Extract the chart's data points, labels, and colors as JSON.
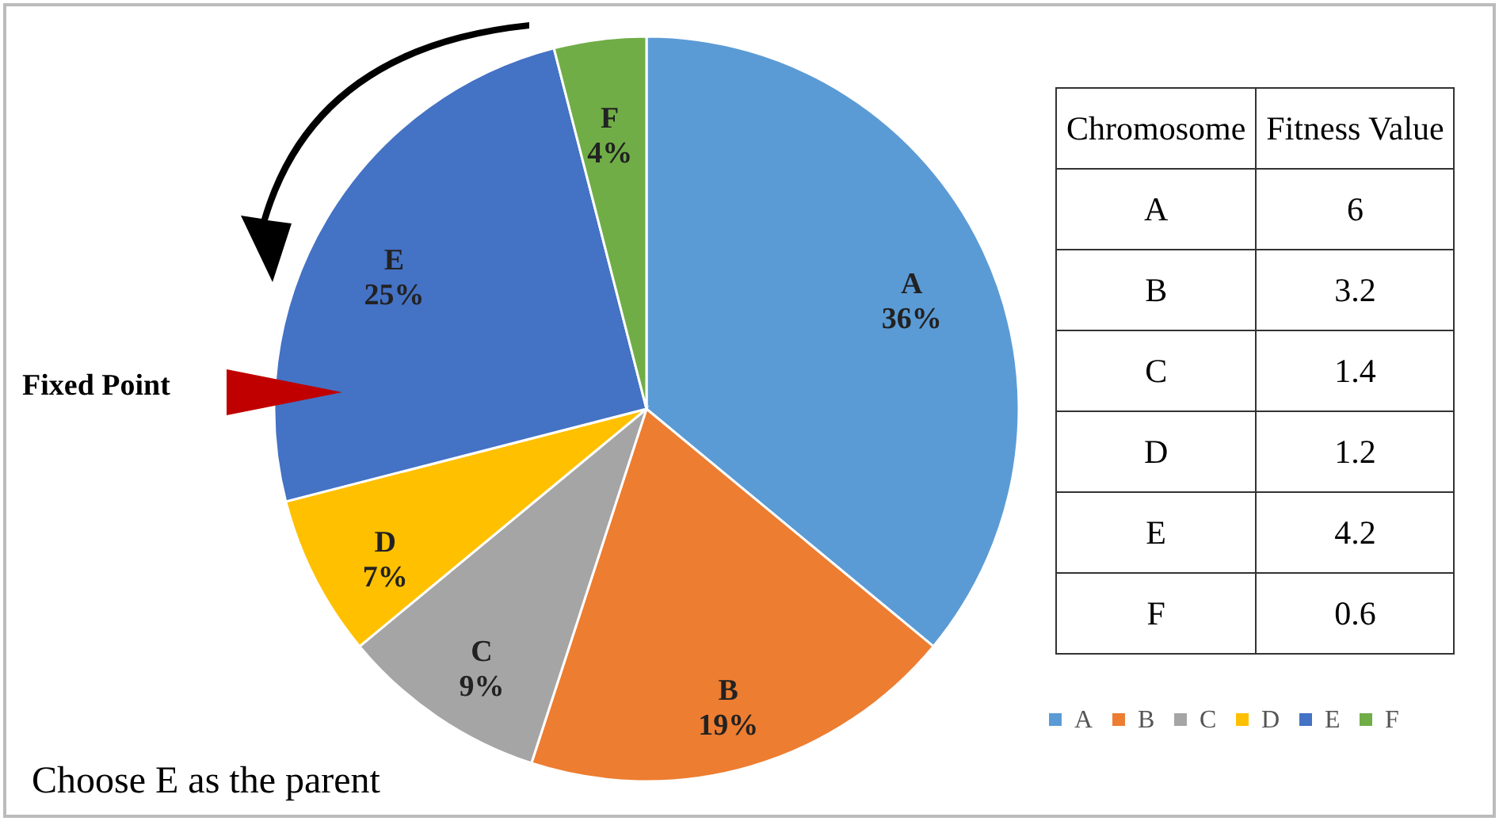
{
  "chart_data": [
    {
      "type": "pie",
      "categories": [
        "A",
        "B",
        "C",
        "D",
        "E",
        "F"
      ],
      "values": [
        36,
        19,
        9,
        7,
        25,
        4
      ],
      "value_labels": [
        "36%",
        "19%",
        "9%",
        "7%",
        "25%",
        "4%"
      ],
      "colors": [
        "#5b9bd5",
        "#ed7d31",
        "#a5a5a5",
        "#ffc000",
        "#4472c4",
        "#70ad47"
      ],
      "legend": "bottom right",
      "annotations": [
        "Fixed Point",
        "Choose E as the parent"
      ]
    },
    {
      "type": "other",
      "categories": [
        "A",
        "B",
        "C",
        "D",
        "E",
        "F"
      ],
      "values": [
        6,
        3.2,
        1.4,
        1.2,
        4.2,
        0.6
      ],
      "xlabel": "Chromosome",
      "ylabel": "Fitness Value",
      "data_labels": true
    }
  ]
}
